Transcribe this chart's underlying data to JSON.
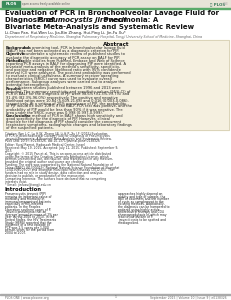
{
  "title_line1": "Evaluation of PCR in Bronchoalveolar Lavage Fluid for",
  "title_line2a": "Diagnosis of ",
  "title_line2b": "Pneumocystis jirovecii",
  "title_line2c": " Pneumonia: A",
  "title_line3": "Bivariate Meta-Analysis and Systematic Review",
  "authors": "Li-Chao Pan, Hui-Wen Lu, Jia-Bin Zhang, Hui-Ping Li, Jin-Fu Xu*",
  "affiliation": "Department of Respiratory Medicine, Shanghai Pulmonary Hospital, Tongji University School of Medicine, Shanghai, China",
  "abstract_label": "Abstract",
  "abstract_sections": [
    {
      "label": "Background:",
      "text": " As a promising tool, PCR in bronchoalveolar lavage fluid (BALF) has not been accepted as a diagnostic criterion for PJP."
    },
    {
      "label": "Objective:",
      "text": " To undertake a systematic review of published studies to evaluate the diagnostic accuracy of PCR assay on BALF for PJP."
    },
    {
      "label": "Methods:",
      "text": " Eligible studies from PubMed, Embase and Web of Science reporting PCR assays in BALF for diagnosing PJP were identified. A bivariate meta-analysis of the method's sensitivity, specificity, and positive and negative likelihood ratio with 95% confidence interval (CI) were analyzed. The post-test probability was performed to evaluate clinical usefulness. A summary receiver operating characteristics (SROC) curve was used to evaluate overall performance. Subgroup analyses were carried out to analyze the potential heterogeneity."
    },
    {
      "label": "Results:",
      "text": " Sixteen studies published between 1996 and 2013 were included. The summary sensitivity and specificity values (95% CI) of PCR in BALF for the diagnosis of PJP were 98.6% (91.3%-99.7%) and 91.4% (82.3%-96.0%) respectively. The positive and negative likelihood ratios were 10.84 (5.609-21.68) and 0.016 (0.003-0.086), respectively. At a setting of 20% prevalence of PJP, the probability of PJP would be over 100% if the BALF-PCR test was positive, and the probability of PJP would be less than 90% if it was negative. The area under the SROC curve was 0.998 (0.997-0.999)."
    },
    {
      "label": "Conclusions:",
      "text": " The method of PCR in BALF shows high sensitivity and good specificity for the diagnosis of PJP. However, clinical practice for the diagnosis of PJP should consider the concurrent respiratory symptoms, radiographic changes and laboratory findings of the suspected patients."
    }
  ],
  "meta_lines": [
    "Citation: Pan L-C, Lu H-W, Zhang J-B, Li H-P, Xu J-F (2015) Evaluation of PCR in Bronchoalveolar Lavage Fluid for Diagnosis of Pneumocystis jirovecii Pneumonia: A Bivariate Meta-Analysis and Systematic Review. PLoS ONE 10(9): e0138326. doi:10.1371/journal.pone.0138326",
    "Editor: Yuval Ramot, Hadassah Medical Center, Israel",
    "Received: May 19, 2015; Accepted: July 11, 2015; Published: September 9, 2015",
    "Copyright: © 2015 Pan et al. This is an open-access article distributed under the terms of the Creative Commons Attribution License, which permits unrestricted use, distribution, and reproduction in any medium, provided the original author and source are credited.",
    "Funding: The work was supported by the National Natural Foundation of China (NNFC) (81300019), National Natural Science Foundation of Shanghai (134190800500) and Shanghai Municipal Health Bureau (2012-65). The funders had no role in study design, data collection and analysis, decision to publish, or preparation of the manuscript.",
    "Competing Interests: The authors have declared that no competing interests exist.",
    "* Email: jinfuxu@tongji.edu.cn"
  ],
  "intro_header": "Introduction",
  "intro_col1": "Pneumocystis jirovecii (PJP) remains an important cause of morbidity and mortality in immunocompromised patients especially in HIV-infected patients. In the Peoples Liberation southern cases of P. jirovecii pneumonia that an average annual increase of 2% per year during 2000 to 2010. In the United States, the HIV Treatments Study (HERS) reported that the incidence of a first episode of PCP was 2.5 cases per 1,000 person-years for the period from 2004 to 2007.",
  "intro_col2": "approaches highly depend on quality and type of sample, the skill of observers and the number of cysts as complement to the existing methods. Additionally, the diagnosis can be hampered to patients using highly active antiretroviral therapy and CD4 chemoprophylaxis in which may lead to low burden of P. jirovecii cysts to be spotted and misdiagnosed.",
  "footer_left": "PLOS ONE | www.plosone.org",
  "footer_center": "1",
  "footer_right": "September 2015 | Volume 10 | Issue 9 | e0138326",
  "header_bar_color": "#e8e4d8",
  "plos_box_color": "#3a8a5a",
  "green_line_color": "#5aaa6a",
  "abstract_bg": "#f5f0e0",
  "abstract_border": "#c8be9a",
  "title_color": "#111111",
  "text_color": "#222222",
  "meta_color": "#333333",
  "footer_color": "#666666"
}
